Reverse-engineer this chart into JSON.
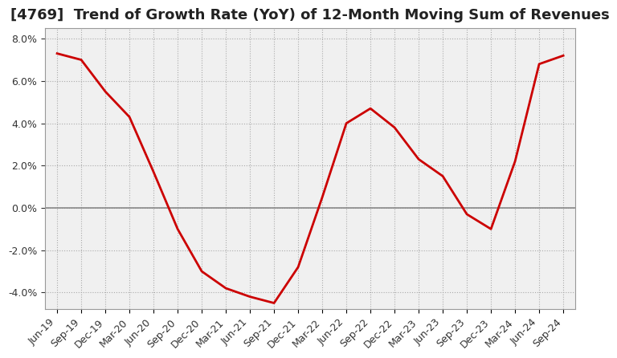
{
  "title": "[4769]  Trend of Growth Rate (YoY) of 12-Month Moving Sum of Revenues",
  "line_color": "#cc0000",
  "background_color": "#ffffff",
  "plot_bg_color": "#f0f0f0",
  "grid_color": "#aaaaaa",
  "zero_line_color": "#888888",
  "ylim": [
    -0.048,
    0.085
  ],
  "yticks": [
    -0.04,
    -0.02,
    0.0,
    0.02,
    0.04,
    0.06,
    0.08
  ],
  "x_labels": [
    "Jun-19",
    "Sep-19",
    "Dec-19",
    "Mar-20",
    "Jun-20",
    "Sep-20",
    "Dec-20",
    "Mar-21",
    "Jun-21",
    "Sep-21",
    "Dec-21",
    "Mar-22",
    "Jun-22",
    "Sep-22",
    "Dec-22",
    "Mar-23",
    "Jun-23",
    "Sep-23",
    "Dec-23",
    "Mar-24",
    "Jun-24",
    "Sep-24"
  ],
  "y_values": [
    0.073,
    0.07,
    0.055,
    0.043,
    0.017,
    -0.01,
    -0.03,
    -0.038,
    -0.042,
    -0.045,
    -0.028,
    0.005,
    0.04,
    0.047,
    0.038,
    0.023,
    0.015,
    -0.003,
    -0.01,
    0.022,
    0.068,
    0.072
  ],
  "title_fontsize": 13,
  "tick_fontsize": 9,
  "title_color": "#222222"
}
